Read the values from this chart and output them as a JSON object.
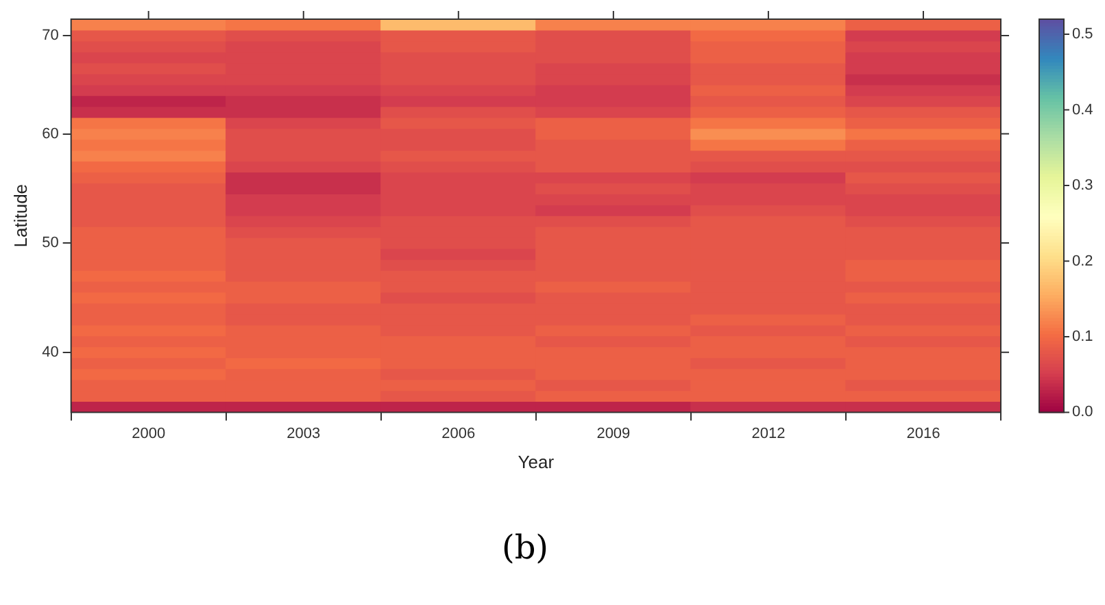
{
  "chart_data": {
    "type": "heatmap",
    "xlabel": "Year",
    "ylabel": "Latitude",
    "categories": [
      "2000",
      "2003",
      "2006",
      "2009",
      "2012",
      "2016"
    ],
    "y_categories": [
      null,
      "70",
      null,
      null,
      null,
      null,
      null,
      null,
      null,
      null,
      "60",
      null,
      null,
      null,
      null,
      null,
      null,
      null,
      null,
      null,
      "50",
      null,
      null,
      null,
      null,
      null,
      null,
      null,
      null,
      null,
      "40",
      null,
      null,
      null,
      null,
      null
    ],
    "clim": [
      0,
      0.52
    ],
    "cticks": [
      {
        "value": 0,
        "label": "0.0"
      },
      {
        "value": 0.1,
        "label": "0.1"
      },
      {
        "value": 0.2,
        "label": "0.2"
      },
      {
        "value": 0.3,
        "label": "0.3"
      },
      {
        "value": 0.4,
        "label": "0.4"
      },
      {
        "value": 0.5,
        "label": "0.5"
      }
    ],
    "annotations": [
      "(b)"
    ],
    "cells": [
      [
        0.12,
        0.11,
        0.17,
        0.12,
        0.12,
        0.09
      ],
      [
        0.08,
        0.07,
        0.08,
        0.07,
        0.1,
        0.05
      ],
      [
        0.07,
        0.06,
        0.08,
        0.07,
        0.09,
        0.06
      ],
      [
        0.06,
        0.06,
        0.07,
        0.07,
        0.09,
        0.05
      ],
      [
        0.07,
        0.06,
        0.07,
        0.06,
        0.08,
        0.05
      ],
      [
        0.06,
        0.06,
        0.07,
        0.06,
        0.08,
        0.04
      ],
      [
        0.05,
        0.05,
        0.06,
        0.05,
        0.09,
        0.05
      ],
      [
        0.03,
        0.04,
        0.05,
        0.05,
        0.08,
        0.06
      ],
      [
        0.04,
        0.04,
        0.07,
        0.06,
        0.09,
        0.08
      ],
      [
        0.11,
        0.06,
        0.08,
        0.09,
        0.11,
        0.09
      ],
      [
        0.12,
        0.07,
        0.07,
        0.09,
        0.13,
        0.11
      ],
      [
        0.11,
        0.07,
        0.07,
        0.08,
        0.11,
        0.09
      ],
      [
        0.12,
        0.07,
        0.08,
        0.08,
        0.08,
        0.08
      ],
      [
        0.1,
        0.06,
        0.07,
        0.08,
        0.07,
        0.07
      ],
      [
        0.09,
        0.04,
        0.06,
        0.06,
        0.05,
        0.08
      ],
      [
        0.08,
        0.04,
        0.06,
        0.07,
        0.06,
        0.07
      ],
      [
        0.08,
        0.05,
        0.06,
        0.06,
        0.06,
        0.06
      ],
      [
        0.08,
        0.05,
        0.06,
        0.05,
        0.07,
        0.06
      ],
      [
        0.08,
        0.06,
        0.07,
        0.07,
        0.08,
        0.07
      ],
      [
        0.09,
        0.07,
        0.07,
        0.08,
        0.08,
        0.08
      ],
      [
        0.09,
        0.08,
        0.07,
        0.08,
        0.08,
        0.08
      ],
      [
        0.09,
        0.08,
        0.06,
        0.08,
        0.08,
        0.08
      ],
      [
        0.09,
        0.08,
        0.07,
        0.08,
        0.08,
        0.09
      ],
      [
        0.1,
        0.08,
        0.08,
        0.08,
        0.08,
        0.09
      ],
      [
        0.09,
        0.09,
        0.08,
        0.09,
        0.08,
        0.08
      ],
      [
        0.1,
        0.09,
        0.07,
        0.08,
        0.08,
        0.09
      ],
      [
        0.09,
        0.08,
        0.08,
        0.08,
        0.08,
        0.08
      ],
      [
        0.09,
        0.08,
        0.08,
        0.08,
        0.09,
        0.08
      ],
      [
        0.1,
        0.09,
        0.08,
        0.09,
        0.08,
        0.09
      ],
      [
        0.09,
        0.09,
        0.09,
        0.08,
        0.09,
        0.08
      ],
      [
        0.1,
        0.09,
        0.09,
        0.09,
        0.09,
        0.09
      ],
      [
        0.09,
        0.1,
        0.09,
        0.09,
        0.08,
        0.09
      ],
      [
        0.1,
        0.09,
        0.08,
        0.09,
        0.09,
        0.09
      ],
      [
        0.09,
        0.09,
        0.09,
        0.08,
        0.09,
        0.08
      ],
      [
        0.09,
        0.09,
        0.08,
        0.09,
        0.09,
        0.09
      ],
      [
        0.03,
        0.03,
        0.03,
        0.03,
        0.04,
        0.04
      ]
    ]
  }
}
